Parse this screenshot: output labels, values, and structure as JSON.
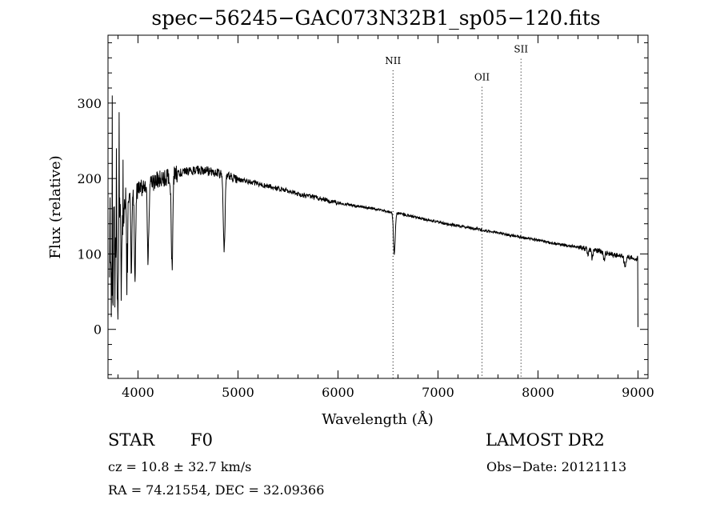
{
  "header": {
    "title": "spec−56245−GAC073N32B1_sp05−120.fits"
  },
  "info": {
    "object_type": "STAR",
    "object_class": "F0",
    "survey": "LAMOST DR2",
    "cz": "cz = 10.8 ± 32.7 km/s",
    "obs_date": "Obs−Date: 20121113",
    "radec": "RA =  74.21554, DEC =  32.09366"
  },
  "chart_data": {
    "type": "line",
    "title": "spec−56245−GAC073N32B1_sp05−120.fits",
    "xlabel": "Wavelength (Å)",
    "ylabel": "Flux (relative)",
    "xlim": [
      3700,
      9100
    ],
    "ylim": [
      -65,
      390
    ],
    "x_ticks": [
      4000,
      5000,
      6000,
      7000,
      8000,
      9000
    ],
    "y_ticks": [
      0,
      100,
      200,
      300
    ],
    "grid": false,
    "line_color": "#000000",
    "continuum": [
      [
        3720,
        120
      ],
      [
        3800,
        150
      ],
      [
        3900,
        175
      ],
      [
        4000,
        185
      ],
      [
        4100,
        192
      ],
      [
        4200,
        198
      ],
      [
        4300,
        203
      ],
      [
        4400,
        207
      ],
      [
        4500,
        210
      ],
      [
        4600,
        211
      ],
      [
        4700,
        210
      ],
      [
        4800,
        207
      ],
      [
        4900,
        203
      ],
      [
        5000,
        199
      ],
      [
        5200,
        193
      ],
      [
        5400,
        187
      ],
      [
        5600,
        180
      ],
      [
        5800,
        174
      ],
      [
        6000,
        168
      ],
      [
        6200,
        163
      ],
      [
        6400,
        159
      ],
      [
        6600,
        154
      ],
      [
        6800,
        148
      ],
      [
        7000,
        142
      ],
      [
        7200,
        137
      ],
      [
        7400,
        133
      ],
      [
        7600,
        128
      ],
      [
        7800,
        123
      ],
      [
        8000,
        118
      ],
      [
        8200,
        113
      ],
      [
        8400,
        109
      ],
      [
        8600,
        104
      ],
      [
        8800,
        98
      ],
      [
        8980,
        94
      ]
    ],
    "absorption_lines": [
      {
        "wavelength": 3735,
        "depth": 90,
        "width": 4
      },
      {
        "wavelength": 3750,
        "depth": 150,
        "width": 3
      },
      {
        "wavelength": 3771,
        "depth": 80,
        "width": 4
      },
      {
        "wavelength": 3798,
        "depth": 170,
        "width": 4
      },
      {
        "wavelength": 3835,
        "depth": 90,
        "width": 5
      },
      {
        "wavelength": 3889,
        "depth": 95,
        "width": 6
      },
      {
        "wavelength": 3933,
        "depth": 110,
        "width": 5
      },
      {
        "wavelength": 3970,
        "depth": 115,
        "width": 6
      },
      {
        "wavelength": 4101,
        "depth": 100,
        "width": 7
      },
      {
        "wavelength": 4340,
        "depth": 120,
        "width": 8
      },
      {
        "wavelength": 4861,
        "depth": 100,
        "width": 9
      },
      {
        "wavelength": 6563,
        "depth": 55,
        "width": 9
      },
      {
        "wavelength": 8498,
        "depth": 8,
        "width": 6
      },
      {
        "wavelength": 8542,
        "depth": 12,
        "width": 7
      },
      {
        "wavelength": 8662,
        "depth": 11,
        "width": 7
      },
      {
        "wavelength": 8870,
        "depth": 13,
        "width": 9
      }
    ],
    "emission_spikes": [
      {
        "wavelength": 3722,
        "value": 175
      },
      {
        "wavelength": 3742,
        "value": 310
      },
      {
        "wavelength": 3760,
        "value": 160
      },
      {
        "wavelength": 3785,
        "value": 240
      },
      {
        "wavelength": 3812,
        "value": 288
      },
      {
        "wavelength": 3850,
        "value": 225
      }
    ],
    "end_drop": {
      "wavelength": 9000,
      "value": 3
    },
    "annotations": [
      {
        "label": "NII",
        "wavelength": 6550,
        "label_y": 352
      },
      {
        "label": "OII",
        "wavelength": 7440,
        "label_y": 330
      },
      {
        "label": "SII",
        "wavelength": 7830,
        "label_y": 367
      }
    ]
  }
}
